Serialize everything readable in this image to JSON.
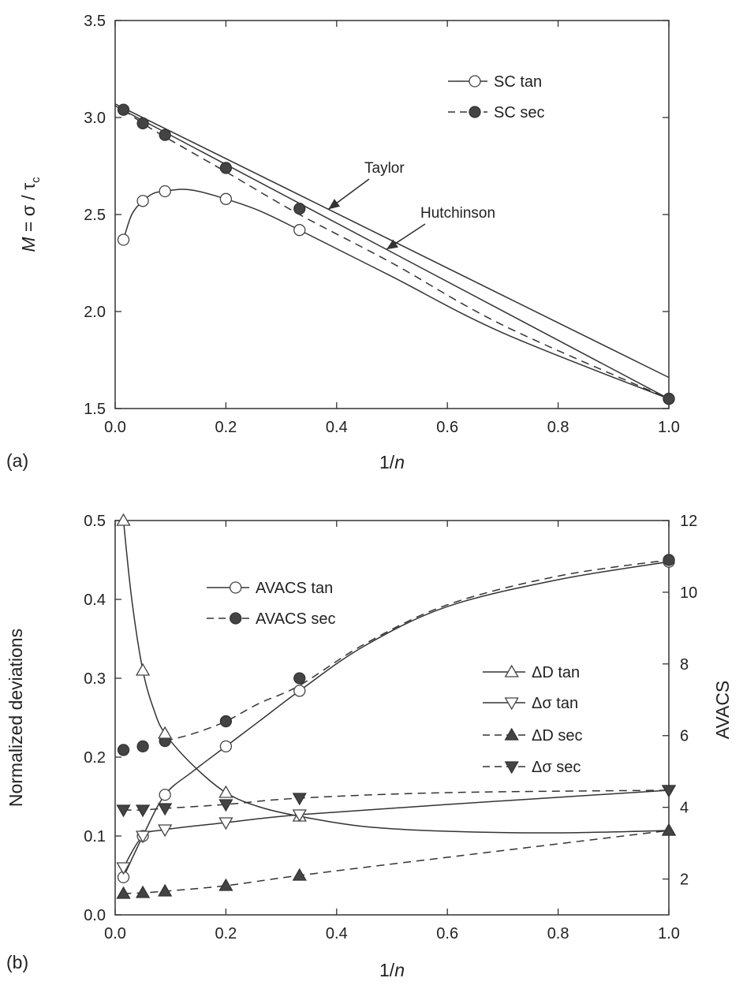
{
  "chart_data": [
    {
      "type": "line",
      "panel_label": "(a)",
      "xlabel_prefix": "1/",
      "xlabel_var": "n",
      "ylabel_var": "M",
      "ylabel_rest": " = σ / τ",
      "ylabel_sub": "c",
      "xlim": [
        0.0,
        1.0
      ],
      "ylim": [
        1.5,
        3.5
      ],
      "xticks": [
        "0.0",
        "0.2",
        "0.4",
        "0.6",
        "0.8",
        "1.0"
      ],
      "yticks": [
        "1.5",
        "2.0",
        "2.5",
        "3.0",
        "3.5"
      ],
      "legend_position": "top-right",
      "series": [
        {
          "name": "SC tan",
          "style": "solid",
          "marker": "open-circle",
          "x": [
            0.015,
            0.05,
            0.09,
            0.2,
            0.333,
            1.0
          ],
          "y": [
            2.37,
            2.57,
            2.62,
            2.58,
            2.42,
            1.55
          ],
          "curve_x": [
            0.015,
            0.03,
            0.05,
            0.07,
            0.09,
            0.12,
            0.15,
            0.2,
            0.26,
            0.333,
            0.5,
            0.7,
            1.0
          ],
          "curve_y": [
            2.37,
            2.5,
            2.57,
            2.61,
            2.62,
            2.63,
            2.62,
            2.58,
            2.52,
            2.42,
            2.18,
            1.89,
            1.55
          ]
        },
        {
          "name": "SC sec",
          "style": "dashed",
          "marker": "filled-circle",
          "x": [
            0.015,
            0.05,
            0.09,
            0.2,
            0.333,
            1.0
          ],
          "y": [
            3.04,
            2.97,
            2.91,
            2.74,
            2.53,
            1.55
          ],
          "curve_x": [
            0.015,
            0.05,
            0.09,
            0.2,
            0.333,
            0.5,
            0.7,
            1.0
          ],
          "curve_y": [
            3.04,
            2.97,
            2.9,
            2.72,
            2.5,
            2.25,
            1.93,
            1.55
          ]
        }
      ],
      "reference_lines": [
        {
          "label": "Taylor",
          "x": [
            0.0,
            1.0
          ],
          "y": [
            3.07,
            1.66
          ]
        },
        {
          "label": "Hutchinson",
          "x": [
            0.0,
            1.0
          ],
          "y": [
            3.06,
            1.55
          ]
        }
      ]
    },
    {
      "type": "line",
      "panel_label": "(b)",
      "xlabel_prefix": "1/",
      "xlabel_var": "n",
      "ylabel": "Normalized deviations",
      "y2label": "AVACS",
      "xlim": [
        0.0,
        1.0
      ],
      "ylim": [
        0.0,
        0.5
      ],
      "y2lim": [
        1,
        12
      ],
      "xticks": [
        "0.0",
        "0.2",
        "0.4",
        "0.6",
        "0.8",
        "1.0"
      ],
      "yticks": [
        "0.0",
        "0.1",
        "0.2",
        "0.3",
        "0.4",
        "0.5"
      ],
      "y2ticks": [
        "2",
        "4",
        "6",
        "8",
        "10",
        "12"
      ],
      "series": [
        {
          "name": "AVACS tan",
          "axis": "right",
          "style": "solid",
          "marker": "open-circle",
          "x": [
            0.015,
            0.05,
            0.09,
            0.2,
            0.333,
            1.0
          ],
          "y": [
            2.05,
            3.2,
            4.35,
            5.7,
            7.25,
            10.85
          ],
          "curve_x": [
            0.015,
            0.05,
            0.09,
            0.14,
            0.2,
            0.26,
            0.333,
            0.45,
            0.6,
            0.8,
            1.0
          ],
          "curve_y": [
            2.05,
            3.2,
            4.35,
            5.0,
            5.7,
            6.4,
            7.25,
            8.5,
            9.6,
            10.35,
            10.85
          ]
        },
        {
          "name": "AVACS sec",
          "axis": "right",
          "style": "dashed",
          "marker": "filled-circle",
          "x": [
            0.015,
            0.05,
            0.09,
            0.2,
            0.333,
            1.0
          ],
          "y": [
            5.6,
            5.7,
            5.85,
            6.4,
            7.6,
            10.9
          ],
          "curve_x": [
            0.09,
            0.14,
            0.2,
            0.26,
            0.333,
            0.45,
            0.6,
            0.8,
            1.0
          ],
          "curve_y": [
            5.85,
            6.05,
            6.4,
            6.9,
            7.4,
            8.55,
            9.65,
            10.45,
            10.9
          ]
        },
        {
          "name": "ΔD tan",
          "axis": "left",
          "style": "solid",
          "marker": "open-triangle-up",
          "x": [
            0.015,
            0.05,
            0.09,
            0.2,
            0.333,
            1.0
          ],
          "y": [
            0.5,
            0.31,
            0.23,
            0.155,
            0.125,
            0.107
          ],
          "curve_x": [
            0.015,
            0.03,
            0.05,
            0.07,
            0.09,
            0.14,
            0.2,
            0.26,
            0.333,
            0.45,
            0.6,
            0.8,
            1.0
          ],
          "curve_y": [
            0.5,
            0.4,
            0.31,
            0.26,
            0.23,
            0.19,
            0.155,
            0.137,
            0.125,
            0.112,
            0.106,
            0.104,
            0.107
          ]
        },
        {
          "name": "Δσ tan",
          "axis": "left",
          "style": "solid",
          "marker": "open-triangle-down",
          "x": [
            0.015,
            0.05,
            0.09,
            0.2,
            0.333,
            1.0
          ],
          "y": [
            0.06,
            0.1,
            0.108,
            0.117,
            0.127,
            0.158
          ],
          "curve_x": [
            0.015,
            0.05,
            0.09,
            0.2,
            0.333,
            0.6,
            1.0
          ],
          "curve_y": [
            0.06,
            0.1,
            0.108,
            0.117,
            0.127,
            0.14,
            0.158
          ]
        },
        {
          "name": "ΔD sec",
          "axis": "left",
          "style": "dashed",
          "marker": "filled-triangle-up",
          "x": [
            0.015,
            0.05,
            0.09,
            0.2,
            0.333,
            1.0
          ],
          "y": [
            0.027,
            0.028,
            0.03,
            0.037,
            0.05,
            0.107
          ],
          "curve_x": [
            0.015,
            0.05,
            0.09,
            0.2,
            0.333,
            0.6,
            1.0
          ],
          "curve_y": [
            0.027,
            0.028,
            0.03,
            0.037,
            0.05,
            0.073,
            0.107
          ]
        },
        {
          "name": "Δσ sec",
          "axis": "left",
          "style": "dashed",
          "marker": "filled-triangle-down",
          "x": [
            0.015,
            0.05,
            0.09,
            0.2,
            0.333,
            1.0
          ],
          "y": [
            0.133,
            0.133,
            0.135,
            0.14,
            0.148,
            0.158
          ],
          "curve_x": [
            0.015,
            0.05,
            0.09,
            0.2,
            0.333,
            0.6,
            1.0
          ],
          "curve_y": [
            0.133,
            0.133,
            0.135,
            0.14,
            0.148,
            0.155,
            0.158
          ]
        }
      ]
    }
  ]
}
